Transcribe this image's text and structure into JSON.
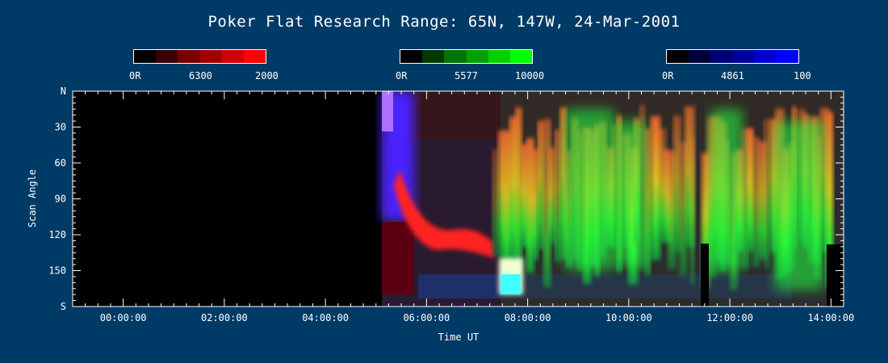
{
  "title": "Poker Flat Research Range: 65N, 147W, 24-Mar-2001",
  "colorbars": [
    {
      "name": "red",
      "min_label": "0R",
      "mid_label": "6300",
      "max_label": "2000",
      "colors": [
        "#000000",
        "#3a0000",
        "#760000",
        "#a00000",
        "#d00000",
        "#ff0000"
      ]
    },
    {
      "name": "green",
      "min_label": "0R",
      "mid_label": "5577",
      "max_label": "10000",
      "colors": [
        "#000000",
        "#003a00",
        "#007600",
        "#00a000",
        "#00d000",
        "#00ff00"
      ]
    },
    {
      "name": "blue",
      "min_label": "0R",
      "mid_label": "4861",
      "max_label": "100",
      "colors": [
        "#000000",
        "#00003a",
        "#000076",
        "#0000a0",
        "#0000d0",
        "#0000ff"
      ]
    }
  ],
  "chart_data": {
    "type": "heatmap",
    "title": "Poker Flat Research Range: 65N, 147W, 24-Mar-2001",
    "xlabel": "Time UT",
    "ylabel": "Scan Angle",
    "x_ticks": [
      "00:00:00",
      "02:00:00",
      "04:00:00",
      "06:00:00",
      "08:00:00",
      "10:00:00",
      "12:00:00",
      "14:00:00"
    ],
    "y_ticks": [
      "N",
      "30",
      "60",
      "90",
      "120",
      "150",
      "S"
    ],
    "xlim": [
      "-01:00:00",
      "14:15:00"
    ],
    "ylim": [
      0,
      180
    ],
    "data_start_time": "05:07:00",
    "channels": [
      "6300",
      "5577",
      "4861"
    ]
  }
}
